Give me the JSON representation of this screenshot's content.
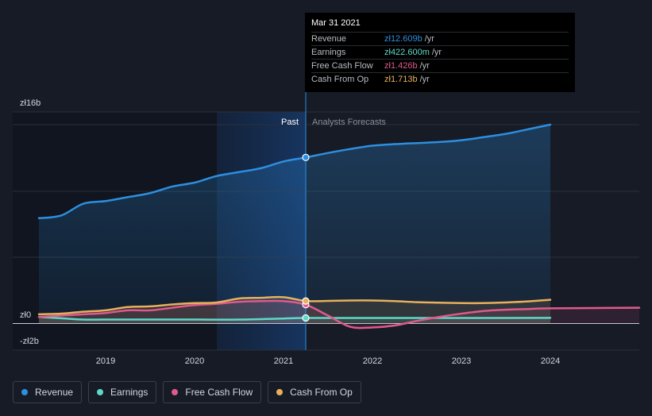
{
  "tooltip": {
    "date": "Mar 31 2021",
    "rows": [
      {
        "label": "Revenue",
        "value": "zł12.609b",
        "unit": "/yr",
        "color": "#2d8fe0"
      },
      {
        "label": "Earnings",
        "value": "zł422.600m",
        "unit": "/yr",
        "color": "#5ed8c8"
      },
      {
        "label": "Free Cash Flow",
        "value": "zł1.426b",
        "unit": "/yr",
        "color": "#e05a8c"
      },
      {
        "label": "Cash From Op",
        "value": "zł1.713b",
        "unit": "/yr",
        "color": "#e8b05c"
      }
    ]
  },
  "legend": [
    {
      "label": "Revenue",
      "color": "#2d8fe0"
    },
    {
      "label": "Earnings",
      "color": "#5ed8c8"
    },
    {
      "label": "Free Cash Flow",
      "color": "#e05a8c"
    },
    {
      "label": "Cash From Op",
      "color": "#e8b05c"
    }
  ],
  "chart_data": {
    "type": "line",
    "past_label": "Past",
    "forecast_label": "Analysts Forecasts",
    "y_tick_labels": [
      "zł16b",
      "zł0",
      "-zł2b"
    ],
    "x_tick_labels": [
      "2019",
      "2020",
      "2021",
      "2022",
      "2023",
      "2024"
    ],
    "ylim": [
      -2,
      16
    ],
    "divider_x": 2021.25,
    "highlight_start": 2020.25,
    "grid": true,
    "series": [
      {
        "name": "Revenue",
        "color": "#2d8fe0",
        "area": true,
        "x": [
          2018.25,
          2018.5,
          2018.75,
          2019.0,
          2019.25,
          2019.5,
          2019.75,
          2020.0,
          2020.25,
          2020.5,
          2020.75,
          2021.0,
          2021.25,
          2021.5,
          2021.75,
          2022.0,
          2022.25,
          2022.5,
          2022.75,
          2023.0,
          2023.25,
          2023.5,
          2023.75,
          2024.0
        ],
        "values": [
          8.0,
          8.2,
          9.1,
          9.3,
          9.6,
          9.9,
          10.4,
          10.7,
          11.2,
          11.5,
          11.8,
          12.3,
          12.61,
          12.95,
          13.25,
          13.5,
          13.62,
          13.7,
          13.78,
          13.92,
          14.15,
          14.4,
          14.75,
          15.1
        ]
      },
      {
        "name": "Earnings",
        "color": "#5ed8c8",
        "x": [
          2018.25,
          2018.5,
          2018.75,
          2019.0,
          2019.5,
          2020.0,
          2020.5,
          2021.0,
          2021.25,
          2022.0,
          2023.0,
          2024.0
        ],
        "values": [
          0.5,
          0.4,
          0.3,
          0.3,
          0.3,
          0.3,
          0.3,
          0.38,
          0.42,
          0.42,
          0.42,
          0.43
        ]
      },
      {
        "name": "Free Cash Flow",
        "color": "#e05a8c",
        "x": [
          2018.25,
          2018.5,
          2018.75,
          2019.0,
          2019.25,
          2019.5,
          2019.75,
          2020.0,
          2020.25,
          2020.5,
          2020.75,
          2021.0,
          2021.25,
          2021.5,
          2021.75,
          2022.0,
          2022.25,
          2022.5,
          2022.75,
          2023.0,
          2023.25,
          2023.5,
          2023.75,
          2024.0,
          2025.0
        ],
        "values": [
          0.5,
          0.6,
          0.7,
          0.8,
          1.0,
          1.0,
          1.2,
          1.4,
          1.5,
          1.65,
          1.7,
          1.7,
          1.43,
          0.6,
          -0.25,
          -0.3,
          -0.15,
          0.2,
          0.5,
          0.75,
          0.95,
          1.05,
          1.1,
          1.15,
          1.2
        ]
      },
      {
        "name": "Cash From Op",
        "color": "#e8b05c",
        "x": [
          2018.25,
          2018.5,
          2018.75,
          2019.0,
          2019.25,
          2019.5,
          2019.75,
          2020.0,
          2020.25,
          2020.5,
          2020.75,
          2021.0,
          2021.25,
          2021.5,
          2021.75,
          2022.0,
          2022.25,
          2022.5,
          2022.75,
          2023.0,
          2023.25,
          2023.5,
          2023.75,
          2024.0
        ],
        "values": [
          0.7,
          0.75,
          0.9,
          1.0,
          1.25,
          1.3,
          1.45,
          1.55,
          1.6,
          1.9,
          1.95,
          2.0,
          1.71,
          1.72,
          1.75,
          1.75,
          1.7,
          1.62,
          1.58,
          1.55,
          1.55,
          1.6,
          1.68,
          1.8
        ]
      }
    ],
    "markers": [
      {
        "series": "Revenue",
        "x": 2021.25,
        "y": 12.61
      },
      {
        "series": "Earnings",
        "x": 2021.25,
        "y": 0.42
      },
      {
        "series": "Free Cash Flow",
        "x": 2021.25,
        "y": 1.43
      },
      {
        "series": "Cash From Op",
        "x": 2021.25,
        "y": 1.71
      }
    ]
  }
}
